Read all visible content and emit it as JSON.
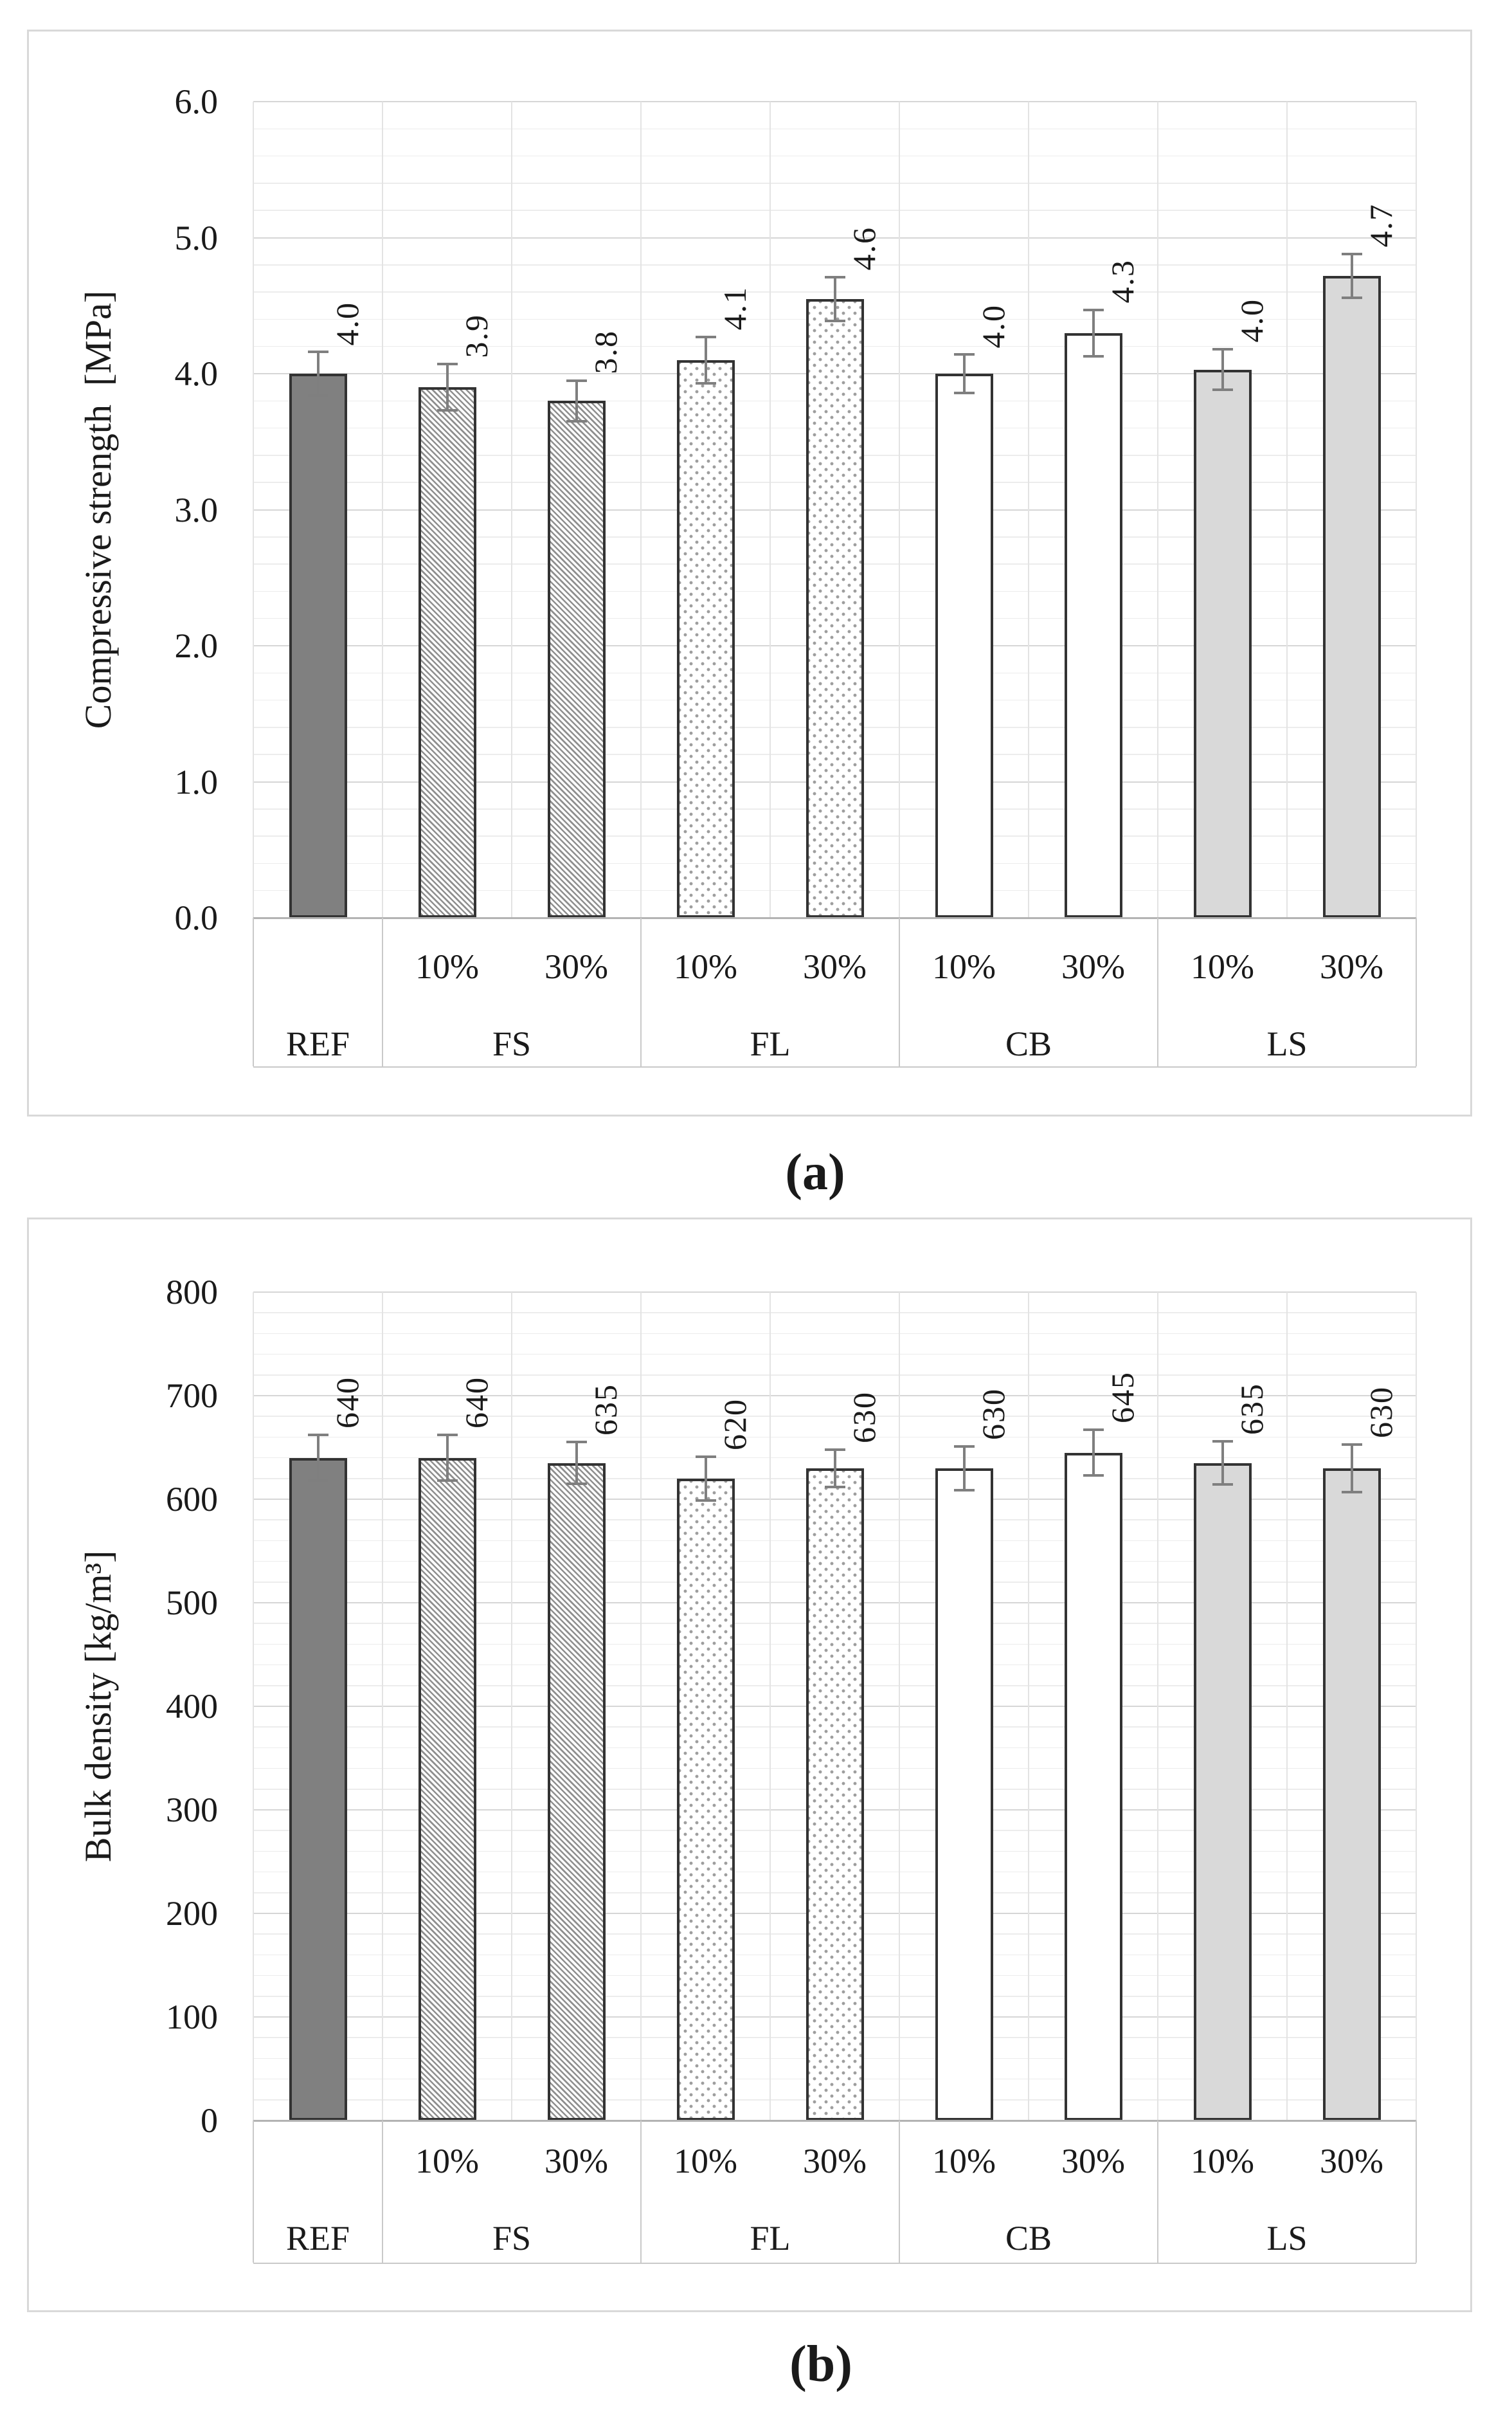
{
  "captions": {
    "a": "(a)",
    "b": "(b)"
  },
  "colors": {
    "text": "#1a1a1a",
    "panel_border": "#d9d9d9",
    "bar_border": "#333333",
    "ref_fill": "#808080",
    "ls_fill": "#d9d9d9",
    "cb_fill": "#ffffff",
    "hatch_line": "#8f8f8f",
    "dot_color": "#9e9e9e",
    "error_bar": "#7f7f7f",
    "major_gridline": "#d6d6d6",
    "minor_gridline": "#ececec",
    "vertical_gridline": "#e3e3e3",
    "axis_line": "#b3b3b3",
    "table_line": "#c9c9c9"
  },
  "chart_data": [
    {
      "id": "a",
      "type": "bar",
      "title": "",
      "ylabel": "Compressive strength  [MPa]",
      "xlabel": "",
      "ylim": [
        0,
        6.0
      ],
      "major_step": 1.0,
      "minor_step": 0.2,
      "ytick_labels": [
        "6.0",
        "5.0",
        "4.0",
        "3.0",
        "2.0",
        "1.0",
        "0.0"
      ],
      "grid": true,
      "legend": false,
      "groups": [
        {
          "label": "REF",
          "pattern": "solid-dark",
          "bars": [
            {
              "sub": "",
              "value": 4.0,
              "label": "4.0",
              "err": 0.16
            }
          ]
        },
        {
          "label": "FS",
          "pattern": "hatch",
          "bars": [
            {
              "sub": "10%",
              "value": 3.9,
              "label": "3.9",
              "err": 0.17
            },
            {
              "sub": "30%",
              "value": 3.8,
              "label": "3.8",
              "err": 0.15
            }
          ]
        },
        {
          "label": "FL",
          "pattern": "dots",
          "bars": [
            {
              "sub": "10%",
              "value": 4.1,
              "label": "4.1",
              "err": 0.17
            },
            {
              "sub": "30%",
              "value": 4.55,
              "label": "4.6",
              "err": 0.16
            }
          ]
        },
        {
          "label": "CB",
          "pattern": "white",
          "bars": [
            {
              "sub": "10%",
              "value": 4.0,
              "label": "4.0",
              "err": 0.14
            },
            {
              "sub": "30%",
              "value": 4.3,
              "label": "4.3",
              "err": 0.17
            }
          ]
        },
        {
          "label": "LS",
          "pattern": "solid-light",
          "bars": [
            {
              "sub": "10%",
              "value": 4.03,
              "label": "4.0",
              "err": 0.15
            },
            {
              "sub": "30%",
              "value": 4.72,
              "label": "4.7",
              "err": 0.16
            }
          ]
        }
      ]
    },
    {
      "id": "b",
      "type": "bar",
      "title": "",
      "ylabel": "Bulk density [kg/m³]",
      "xlabel": "",
      "ylim": [
        0,
        800
      ],
      "major_step": 100,
      "minor_step": 20,
      "ytick_labels": [
        "800",
        "700",
        "600",
        "500",
        "400",
        "300",
        "200",
        "100",
        "0"
      ],
      "grid": true,
      "legend": false,
      "groups": [
        {
          "label": "REF",
          "pattern": "solid-dark",
          "bars": [
            {
              "sub": "",
              "value": 640,
              "label": "640",
              "err": 22
            }
          ]
        },
        {
          "label": "FS",
          "pattern": "hatch",
          "bars": [
            {
              "sub": "10%",
              "value": 640,
              "label": "640",
              "err": 22
            },
            {
              "sub": "30%",
              "value": 635,
              "label": "635",
              "err": 20
            }
          ]
        },
        {
          "label": "FL",
          "pattern": "dots",
          "bars": [
            {
              "sub": "10%",
              "value": 620,
              "label": "620",
              "err": 21
            },
            {
              "sub": "30%",
              "value": 630,
              "label": "630",
              "err": 18
            }
          ]
        },
        {
          "label": "CB",
          "pattern": "white",
          "bars": [
            {
              "sub": "10%",
              "value": 630,
              "label": "630",
              "err": 21
            },
            {
              "sub": "30%",
              "value": 645,
              "label": "645",
              "err": 22
            }
          ]
        },
        {
          "label": "LS",
          "pattern": "solid-light",
          "bars": [
            {
              "sub": "10%",
              "value": 635,
              "label": "635",
              "err": 21
            },
            {
              "sub": "30%",
              "value": 630,
              "label": "630",
              "err": 23
            }
          ]
        }
      ]
    }
  ]
}
